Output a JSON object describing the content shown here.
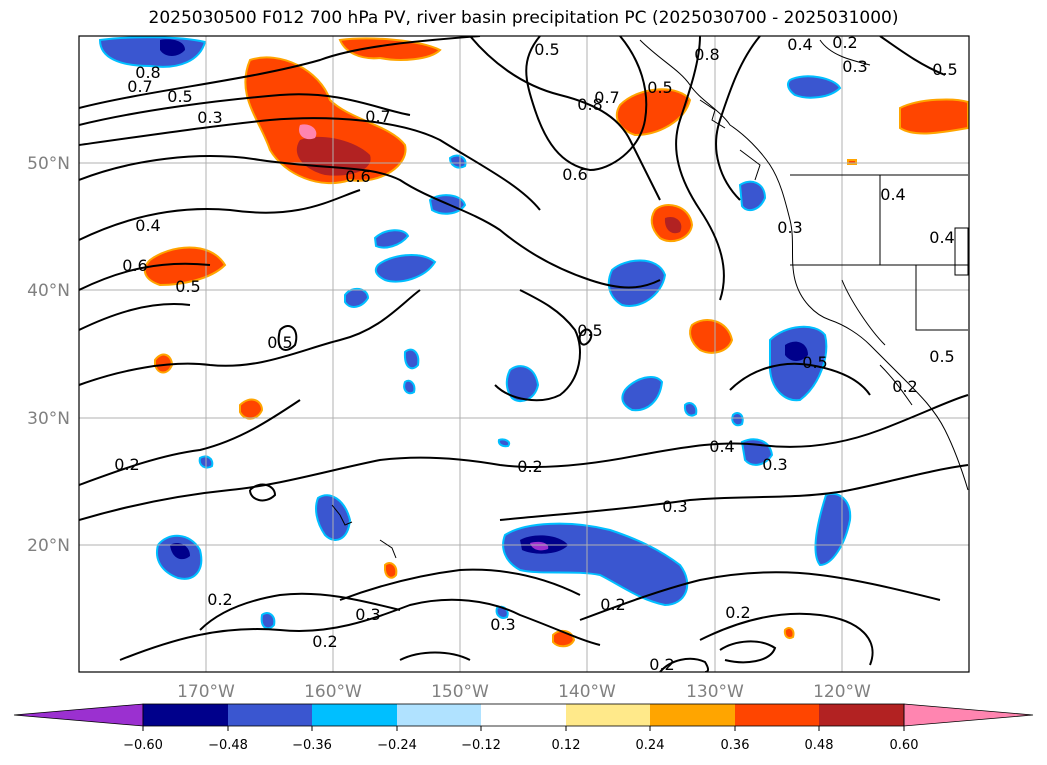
{
  "title": "2025030500 F012 700 hPa PV, river basin precipitation PC (2025030700 - 2025031000)",
  "lat_labels": [
    "50°N",
    "40°N",
    "30°N",
    "20°N"
  ],
  "lon_labels": [
    "170°W",
    "160°W",
    "150°W",
    "140°W",
    "130°W",
    "120°W"
  ],
  "colorbar": {
    "ticks": [
      "−0.60",
      "−0.48",
      "−0.36",
      "−0.24",
      "−0.12",
      "0.12",
      "0.24",
      "0.36",
      "0.48",
      "0.60"
    ],
    "colors": [
      "#9b30d0",
      "#00008b",
      "#3a56d0",
      "#00bfff",
      "#b0e2ff",
      "#ffffff",
      "#ffe98a",
      "#ffa500",
      "#ff4500",
      "#b22222",
      "#ff85b0"
    ]
  },
  "contour_labels": [
    "0.5",
    "0.8",
    "0.7",
    "0.4",
    "0.2",
    "0.3",
    "0.5",
    "0.8",
    "0.7",
    "0.5",
    "0.3",
    "0.7",
    "0.8",
    "0.6",
    "0.5",
    "0.6",
    "0.4",
    "0.6",
    "0.5",
    "0.4",
    "0.3",
    "0.5",
    "0.4",
    "0.5",
    "0.5",
    "0.2",
    "0.4",
    "0.3",
    "0.2",
    "0.3",
    "0.2",
    "0.3",
    "0.2",
    "0.2",
    "0.3",
    "0.2",
    "0.2",
    "0.2",
    "0.5"
  ]
}
